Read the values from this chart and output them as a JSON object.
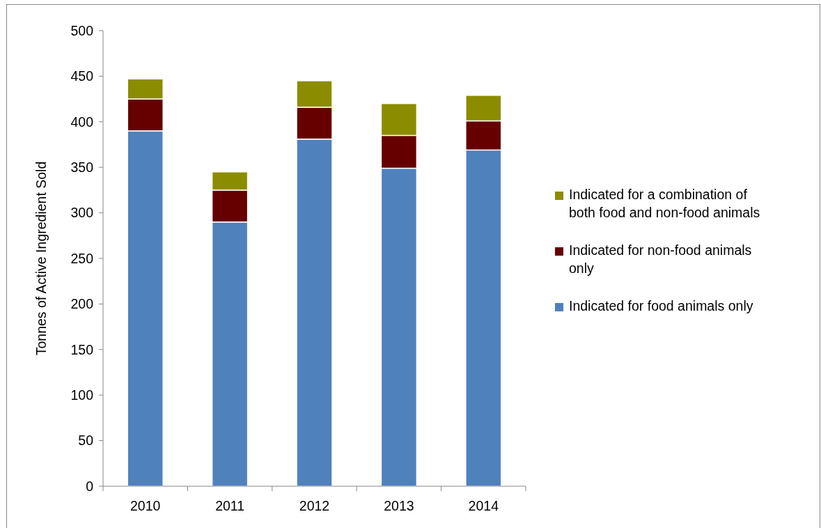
{
  "chart_data": {
    "type": "bar",
    "stacked": true,
    "ylabel": "Tonnes of Active Ingredient Sold",
    "categories": [
      "2010",
      "2011",
      "2012",
      "2013",
      "2014"
    ],
    "series": [
      {
        "name": "Indicated for food animals only",
        "color": "#4f81bd",
        "values": [
          390,
          290,
          381,
          349,
          369
        ]
      },
      {
        "name": "Indicated for non-food animals only",
        "color": "#660000",
        "values": [
          35,
          35,
          35,
          36,
          32
        ]
      },
      {
        "name": "Indicated for a combination of both food and non-food animals",
        "color": "#8c8c00",
        "values": [
          22,
          20,
          29,
          35,
          28
        ]
      }
    ],
    "ylim": [
      0,
      500
    ],
    "yticks": [
      0,
      50,
      100,
      150,
      200,
      250,
      300,
      350,
      400,
      450,
      500
    ],
    "legend": "right",
    "grid": false
  }
}
